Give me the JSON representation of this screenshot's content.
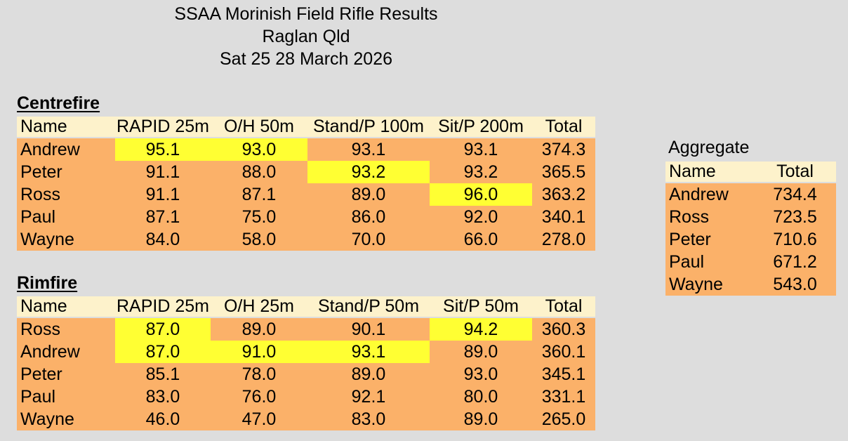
{
  "page": {
    "title_lines": [
      "SSAA Morinish Field Rifle Results",
      "Raglan Qld",
      "Sat 25 28 March 2026"
    ]
  },
  "colors": {
    "page_bg": "#dddddd",
    "header_bg": "#fdf2cb",
    "row_bg": "#fbb169",
    "highlight_bg": "#ffff33",
    "text": "#000000"
  },
  "centrefire": {
    "heading": "Centrefire",
    "columns": [
      "Name",
      "RAPID 25m",
      "O/H 50m",
      "Stand/P 100m",
      "Sit/P 200m",
      "Total"
    ],
    "rows": [
      {
        "name": "Andrew",
        "scores": [
          "95.1",
          "93.0",
          "93.1",
          "93.1"
        ],
        "total": "374.3",
        "highlights": [
          0,
          1
        ]
      },
      {
        "name": "Peter",
        "scores": [
          "91.1",
          "88.0",
          "93.2",
          "93.2"
        ],
        "total": "365.5",
        "highlights": [
          2
        ]
      },
      {
        "name": "Ross",
        "scores": [
          "91.1",
          "87.1",
          "89.0",
          "96.0"
        ],
        "total": "363.2",
        "highlights": [
          3
        ]
      },
      {
        "name": "Paul",
        "scores": [
          "87.1",
          "75.0",
          "86.0",
          "92.0"
        ],
        "total": "340.1",
        "highlights": []
      },
      {
        "name": "Wayne",
        "scores": [
          "84.0",
          "58.0",
          "70.0",
          "66.0"
        ],
        "total": "278.0",
        "highlights": []
      }
    ]
  },
  "rimfire": {
    "heading": "Rimfire",
    "columns": [
      "Name",
      "RAPID 25m",
      "O/H 25m",
      "Stand/P 50m",
      "Sit/P 50m",
      "Total"
    ],
    "rows": [
      {
        "name": "Ross",
        "scores": [
          "87.0",
          "89.0",
          "90.1",
          "94.2"
        ],
        "total": "360.3",
        "highlights": [
          0,
          3
        ]
      },
      {
        "name": "Andrew",
        "scores": [
          "87.0",
          "91.0",
          "93.1",
          "89.0"
        ],
        "total": "360.1",
        "highlights": [
          0,
          1,
          2
        ]
      },
      {
        "name": "Peter",
        "scores": [
          "85.1",
          "78.0",
          "89.0",
          "93.0"
        ],
        "total": "345.1",
        "highlights": []
      },
      {
        "name": "Paul",
        "scores": [
          "83.0",
          "76.0",
          "92.1",
          "80.0"
        ],
        "total": "331.1",
        "highlights": []
      },
      {
        "name": "Wayne",
        "scores": [
          "46.0",
          "47.0",
          "83.0",
          "89.0"
        ],
        "total": "265.0",
        "highlights": []
      }
    ]
  },
  "aggregate": {
    "heading": "Aggregate",
    "columns": [
      "Name",
      "Total"
    ],
    "rows": [
      {
        "name": "Andrew",
        "total": "734.4",
        "highlights": []
      },
      {
        "name": "Ross",
        "total": "723.5",
        "highlights": []
      },
      {
        "name": "Peter",
        "total": "710.6",
        "highlights": []
      },
      {
        "name": "Paul",
        "total": "671.2",
        "highlights": []
      },
      {
        "name": "Wayne",
        "total": "543.0",
        "highlights": []
      }
    ]
  }
}
